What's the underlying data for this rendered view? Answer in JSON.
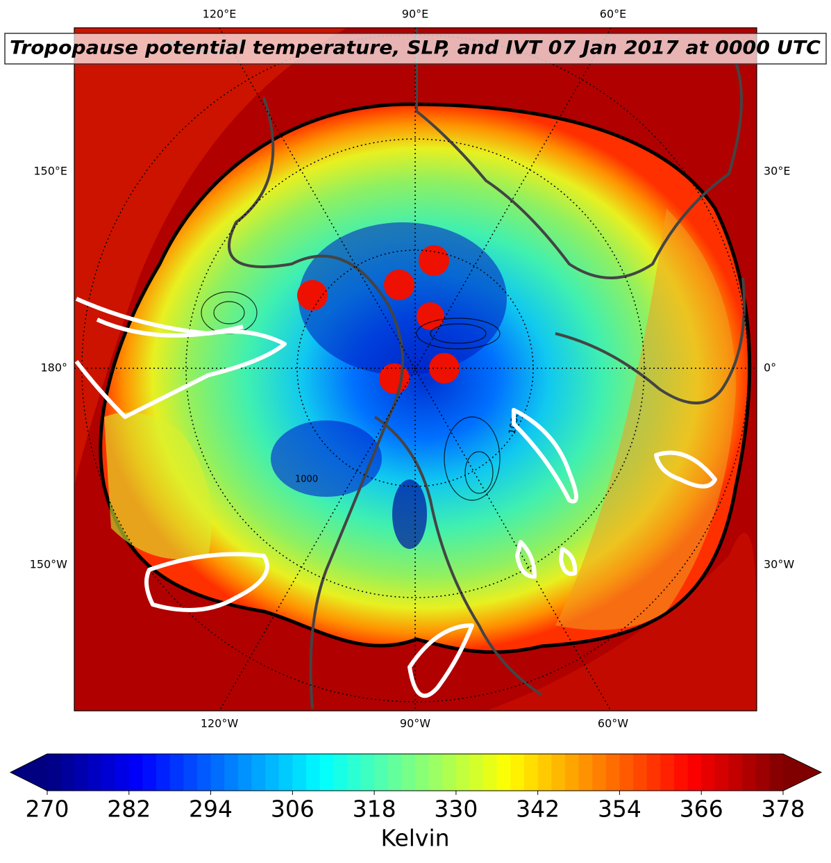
{
  "title": "Tropopause potential temperature, SLP, and IVT 07 Jan 2017 at 0000 UTC",
  "map": {
    "lon_labels_top": [
      "120°E",
      "90°E",
      "60°E"
    ],
    "lon_labels_bottom": [
      "120°W",
      "90°W",
      "60°W"
    ],
    "lon_labels_left": [
      "150°E",
      "180°",
      "150°W"
    ],
    "lon_labels_right": [
      "30°E",
      "0°",
      "30°W"
    ],
    "contour_labels": [
      "1000",
      "1000"
    ]
  },
  "colorbar": {
    "label": "Kelvin",
    "lim": [
      270,
      378
    ],
    "ticks": [
      270,
      282,
      294,
      306,
      318,
      330,
      342,
      354,
      366,
      378
    ],
    "colormap": "jet",
    "extend": "both",
    "levels": 54
  }
}
